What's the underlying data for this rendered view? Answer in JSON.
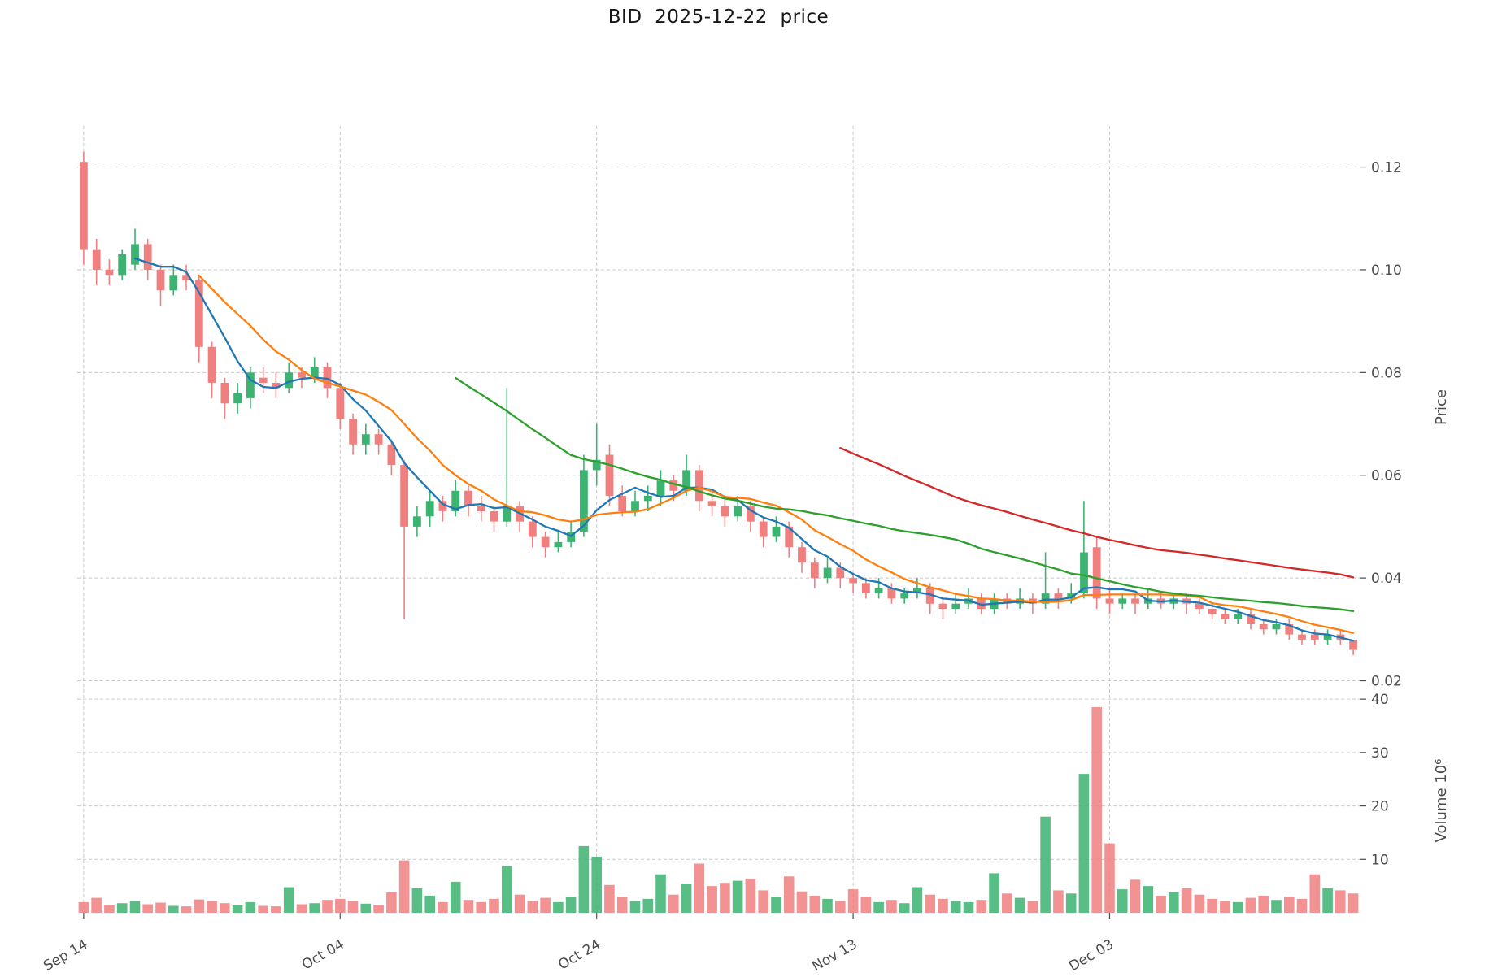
{
  "chart_data": {
    "type": "candlestick",
    "title": "BID  2025-12-22  price",
    "ylabel_price": "Price",
    "ylabel_volume": "Volume  10⁶",
    "legend_position": "none",
    "grid": true,
    "price_ticks": [
      0.02,
      0.04,
      0.06,
      0.08,
      0.1,
      0.12
    ],
    "volume_ticks": [
      10,
      20,
      30,
      40
    ],
    "price_range": [
      0.0185,
      0.128
    ],
    "volume_range": [
      0,
      42
    ],
    "x_ticks": [
      {
        "index": 0,
        "label": "Sep 14"
      },
      {
        "index": 20,
        "label": "Oct 04"
      },
      {
        "index": 40,
        "label": "Oct 24"
      },
      {
        "index": 60,
        "label": "Nov 13"
      },
      {
        "index": 80,
        "label": "Dec 03"
      }
    ],
    "moving_averages": [
      {
        "window": 5,
        "color": "#1f77b4"
      },
      {
        "window": 10,
        "color": "#ff7f0e"
      },
      {
        "window": 30,
        "color": "#2ca02c"
      },
      {
        "window": 60,
        "color": "#d62728"
      }
    ],
    "colors": {
      "up": "#3cb371",
      "down": "#f08080",
      "grid": "#c9c9c9",
      "text": "#4b4b4b"
    },
    "candle_fields": [
      "date",
      "open",
      "high",
      "low",
      "close",
      "volume_millions"
    ],
    "candles": [
      [
        "2025-09-14",
        0.121,
        0.123,
        0.101,
        0.104,
        2.0
      ],
      [
        "2025-09-15",
        0.104,
        0.106,
        0.097,
        0.1,
        2.8
      ],
      [
        "2025-09-16",
        0.1,
        0.102,
        0.097,
        0.099,
        1.5
      ],
      [
        "2025-09-17",
        0.099,
        0.104,
        0.098,
        0.103,
        1.8
      ],
      [
        "2025-09-18",
        0.101,
        0.108,
        0.1,
        0.105,
        2.2
      ],
      [
        "2025-09-19",
        0.105,
        0.106,
        0.098,
        0.1,
        1.6
      ],
      [
        "2025-09-20",
        0.1,
        0.101,
        0.093,
        0.096,
        1.9
      ],
      [
        "2025-09-21",
        0.096,
        0.101,
        0.095,
        0.099,
        1.3
      ],
      [
        "2025-09-22",
        0.099,
        0.101,
        0.096,
        0.098,
        1.2
      ],
      [
        "2025-09-23",
        0.098,
        0.099,
        0.082,
        0.085,
        2.5
      ],
      [
        "2025-09-24",
        0.085,
        0.086,
        0.075,
        0.078,
        2.2
      ],
      [
        "2025-09-25",
        0.078,
        0.079,
        0.071,
        0.074,
        1.8
      ],
      [
        "2025-09-26",
        0.074,
        0.078,
        0.072,
        0.076,
        1.4
      ],
      [
        "2025-09-27",
        0.075,
        0.081,
        0.073,
        0.08,
        2.0
      ],
      [
        "2025-09-28",
        0.079,
        0.081,
        0.076,
        0.078,
        1.3
      ],
      [
        "2025-09-29",
        0.078,
        0.08,
        0.075,
        0.077,
        1.2
      ],
      [
        "2025-09-30",
        0.077,
        0.082,
        0.076,
        0.08,
        4.8
      ],
      [
        "2025-10-01",
        0.08,
        0.081,
        0.077,
        0.079,
        1.6
      ],
      [
        "2025-10-02",
        0.079,
        0.083,
        0.078,
        0.081,
        1.8
      ],
      [
        "2025-10-03",
        0.081,
        0.082,
        0.075,
        0.077,
        2.4
      ],
      [
        "2025-10-04",
        0.077,
        0.078,
        0.069,
        0.071,
        2.6
      ],
      [
        "2025-10-05",
        0.071,
        0.072,
        0.064,
        0.066,
        2.2
      ],
      [
        "2025-10-06",
        0.066,
        0.07,
        0.064,
        0.068,
        1.7
      ],
      [
        "2025-10-07",
        0.068,
        0.069,
        0.064,
        0.066,
        1.5
      ],
      [
        "2025-10-08",
        0.066,
        0.067,
        0.06,
        0.062,
        3.8
      ],
      [
        "2025-10-09",
        0.062,
        0.063,
        0.032,
        0.05,
        9.8
      ],
      [
        "2025-10-10",
        0.05,
        0.054,
        0.048,
        0.052,
        4.6
      ],
      [
        "2025-10-11",
        0.052,
        0.057,
        0.05,
        0.055,
        3.2
      ],
      [
        "2025-10-12",
        0.055,
        0.056,
        0.051,
        0.053,
        2.0
      ],
      [
        "2025-10-13",
        0.053,
        0.059,
        0.052,
        0.057,
        5.8
      ],
      [
        "2025-10-14",
        0.057,
        0.058,
        0.052,
        0.054,
        2.4
      ],
      [
        "2025-10-15",
        0.054,
        0.056,
        0.051,
        0.053,
        2.0
      ],
      [
        "2025-10-16",
        0.053,
        0.054,
        0.049,
        0.051,
        2.6
      ],
      [
        "2025-10-17",
        0.051,
        0.077,
        0.05,
        0.054,
        8.8
      ],
      [
        "2025-10-18",
        0.054,
        0.055,
        0.049,
        0.051,
        3.4
      ],
      [
        "2025-10-19",
        0.051,
        0.052,
        0.046,
        0.048,
        2.2
      ],
      [
        "2025-10-20",
        0.048,
        0.049,
        0.044,
        0.046,
        2.8
      ],
      [
        "2025-10-21",
        0.046,
        0.049,
        0.045,
        0.047,
        2.0
      ],
      [
        "2025-10-22",
        0.047,
        0.051,
        0.046,
        0.049,
        3.0
      ],
      [
        "2025-10-23",
        0.049,
        0.064,
        0.048,
        0.061,
        12.5
      ],
      [
        "2025-10-24",
        0.061,
        0.07,
        0.058,
        0.063,
        10.5
      ],
      [
        "2025-10-25",
        0.064,
        0.066,
        0.054,
        0.056,
        5.2
      ],
      [
        "2025-10-26",
        0.056,
        0.058,
        0.052,
        0.053,
        3.0
      ],
      [
        "2025-10-27",
        0.053,
        0.057,
        0.052,
        0.055,
        2.2
      ],
      [
        "2025-10-28",
        0.055,
        0.058,
        0.053,
        0.056,
        2.6
      ],
      [
        "2025-10-29",
        0.056,
        0.061,
        0.054,
        0.059,
        7.2
      ],
      [
        "2025-10-30",
        0.059,
        0.06,
        0.055,
        0.057,
        3.4
      ],
      [
        "2025-10-31",
        0.057,
        0.064,
        0.056,
        0.061,
        5.4
      ],
      [
        "2025-11-01",
        0.061,
        0.062,
        0.053,
        0.055,
        9.2
      ],
      [
        "2025-11-02",
        0.055,
        0.057,
        0.052,
        0.054,
        5.0
      ],
      [
        "2025-11-03",
        0.054,
        0.056,
        0.05,
        0.052,
        5.6
      ],
      [
        "2025-11-04",
        0.052,
        0.056,
        0.051,
        0.054,
        6.0
      ],
      [
        "2025-11-05",
        0.054,
        0.055,
        0.049,
        0.051,
        6.4
      ],
      [
        "2025-11-06",
        0.051,
        0.052,
        0.046,
        0.048,
        4.2
      ],
      [
        "2025-11-07",
        0.048,
        0.052,
        0.047,
        0.05,
        3.0
      ],
      [
        "2025-11-08",
        0.05,
        0.051,
        0.044,
        0.046,
        6.8
      ],
      [
        "2025-11-09",
        0.046,
        0.047,
        0.041,
        0.043,
        4.0
      ],
      [
        "2025-11-10",
        0.043,
        0.044,
        0.038,
        0.04,
        3.2
      ],
      [
        "2025-11-11",
        0.04,
        0.044,
        0.039,
        0.042,
        2.6
      ],
      [
        "2025-11-12",
        0.042,
        0.043,
        0.038,
        0.04,
        2.2
      ],
      [
        "2025-11-13",
        0.04,
        0.041,
        0.037,
        0.039,
        4.4
      ],
      [
        "2025-11-14",
        0.039,
        0.04,
        0.036,
        0.037,
        3.0
      ],
      [
        "2025-11-15",
        0.037,
        0.04,
        0.036,
        0.038,
        2.0
      ],
      [
        "2025-11-16",
        0.038,
        0.039,
        0.035,
        0.036,
        2.4
      ],
      [
        "2025-11-17",
        0.036,
        0.038,
        0.035,
        0.037,
        1.8
      ],
      [
        "2025-11-18",
        0.037,
        0.04,
        0.036,
        0.038,
        4.8
      ],
      [
        "2025-11-19",
        0.038,
        0.039,
        0.033,
        0.035,
        3.4
      ],
      [
        "2025-11-20",
        0.035,
        0.036,
        0.032,
        0.034,
        2.6
      ],
      [
        "2025-11-21",
        0.034,
        0.037,
        0.033,
        0.035,
        2.2
      ],
      [
        "2025-11-22",
        0.035,
        0.038,
        0.034,
        0.036,
        2.0
      ],
      [
        "2025-11-23",
        0.036,
        0.037,
        0.033,
        0.034,
        2.4
      ],
      [
        "2025-11-24",
        0.034,
        0.037,
        0.033,
        0.036,
        7.4
      ],
      [
        "2025-11-25",
        0.036,
        0.037,
        0.034,
        0.035,
        3.6
      ],
      [
        "2025-11-26",
        0.035,
        0.038,
        0.034,
        0.036,
        2.8
      ],
      [
        "2025-11-27",
        0.036,
        0.037,
        0.033,
        0.035,
        2.2
      ],
      [
        "2025-11-28",
        0.035,
        0.045,
        0.034,
        0.037,
        18.0
      ],
      [
        "2025-11-29",
        0.037,
        0.038,
        0.034,
        0.036,
        4.2
      ],
      [
        "2025-11-30",
        0.036,
        0.039,
        0.035,
        0.037,
        3.6
      ],
      [
        "2025-12-01",
        0.037,
        0.055,
        0.036,
        0.045,
        26.0
      ],
      [
        "2025-12-02",
        0.046,
        0.048,
        0.034,
        0.036,
        38.5
      ],
      [
        "2025-12-03",
        0.036,
        0.038,
        0.033,
        0.035,
        13.0
      ],
      [
        "2025-12-04",
        0.035,
        0.037,
        0.034,
        0.036,
        4.4
      ],
      [
        "2025-12-05",
        0.036,
        0.037,
        0.033,
        0.035,
        6.2
      ],
      [
        "2025-12-06",
        0.035,
        0.038,
        0.034,
        0.036,
        5.0
      ],
      [
        "2025-12-07",
        0.036,
        0.037,
        0.034,
        0.035,
        3.2
      ],
      [
        "2025-12-08",
        0.035,
        0.037,
        0.034,
        0.036,
        3.8
      ],
      [
        "2025-12-09",
        0.036,
        0.037,
        0.033,
        0.035,
        4.6
      ],
      [
        "2025-12-10",
        0.035,
        0.036,
        0.033,
        0.034,
        3.4
      ],
      [
        "2025-12-11",
        0.034,
        0.035,
        0.032,
        0.033,
        2.6
      ],
      [
        "2025-12-12",
        0.033,
        0.034,
        0.031,
        0.032,
        2.2
      ],
      [
        "2025-12-13",
        0.032,
        0.034,
        0.031,
        0.033,
        2.0
      ],
      [
        "2025-12-14",
        0.033,
        0.034,
        0.03,
        0.031,
        2.8
      ],
      [
        "2025-12-15",
        0.031,
        0.032,
        0.029,
        0.03,
        3.2
      ],
      [
        "2025-12-16",
        0.03,
        0.032,
        0.029,
        0.031,
        2.4
      ],
      [
        "2025-12-17",
        0.031,
        0.032,
        0.028,
        0.029,
        3.0
      ],
      [
        "2025-12-18",
        0.029,
        0.03,
        0.027,
        0.028,
        2.6
      ],
      [
        "2025-12-19",
        0.029,
        0.03,
        0.027,
        0.028,
        7.2
      ],
      [
        "2025-12-20",
        0.028,
        0.03,
        0.027,
        0.029,
        4.6
      ],
      [
        "2025-12-21",
        0.029,
        0.03,
        0.027,
        0.028,
        4.2
      ],
      [
        "2025-12-22",
        0.028,
        0.028,
        0.025,
        0.026,
        3.6
      ]
    ]
  }
}
